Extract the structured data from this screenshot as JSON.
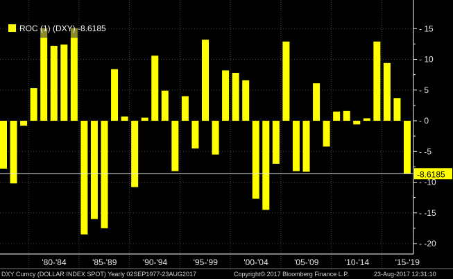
{
  "colors": {
    "background": "#000000",
    "bar": "#ffff00",
    "axis": "#ffffff",
    "grid": "#4a4a4a",
    "highlight": "#8a8a2a"
  },
  "chart_data": {
    "type": "bar",
    "legend": "ROC (1) (DXY) -8.6185",
    "last_value": -8.6185,
    "last_value_label": "-8.6185",
    "ylim": [
      -22,
      19
    ],
    "y_ticks": [
      {
        "value": 15,
        "label": "15"
      },
      {
        "value": 10,
        "label": "10"
      },
      {
        "value": 5,
        "label": "5"
      },
      {
        "value": 0,
        "label": "0"
      },
      {
        "value": -5,
        "label": "-5"
      },
      {
        "value": -10,
        "label": "-10"
      },
      {
        "value": -15,
        "label": "-15"
      },
      {
        "value": -20,
        "label": "-20"
      }
    ],
    "x_labels": [
      "'80-'84",
      "'85-'89",
      "'90-'94",
      "'95-'99",
      "'00-'04",
      "'05-'09",
      "'10-'14",
      "'15-'19"
    ],
    "years": [
      1977,
      1978,
      1979,
      1980,
      1981,
      1982,
      1983,
      1984,
      1985,
      1986,
      1987,
      1988,
      1989,
      1990,
      1991,
      1992,
      1993,
      1994,
      1995,
      1996,
      1997,
      1998,
      1999,
      2000,
      2001,
      2002,
      2003,
      2004,
      2005,
      2006,
      2007,
      2008,
      2009,
      2010,
      2011,
      2012,
      2013,
      2014,
      2015,
      2016,
      2017
    ],
    "values": [
      -7.8,
      -10.2,
      -0.8,
      5.3,
      13.5,
      12.2,
      12.4,
      13.5,
      -18.5,
      -16,
      -17.5,
      8.4,
      0.7,
      -10.8,
      0.5,
      10.6,
      4.9,
      -8.2,
      4,
      -4.5,
      13.2,
      -5.5,
      8.2,
      7.8,
      6.6,
      -12.7,
      -14.5,
      -7,
      12.9,
      -8.2,
      -8.3,
      6.1,
      -4.2,
      1.5,
      1.6,
      -0.6,
      0.4,
      12.9,
      9.4,
      3.7,
      -8.6185
    ]
  },
  "footer": {
    "left": "DXY Curncy (DOLLAR INDEX SPOT)  Yearly 02SEP1977-23AUG2017",
    "center": "Copyright© 2017 Bloomberg Finance L.P.",
    "right": "23-Aug-2017 12:31:10"
  }
}
